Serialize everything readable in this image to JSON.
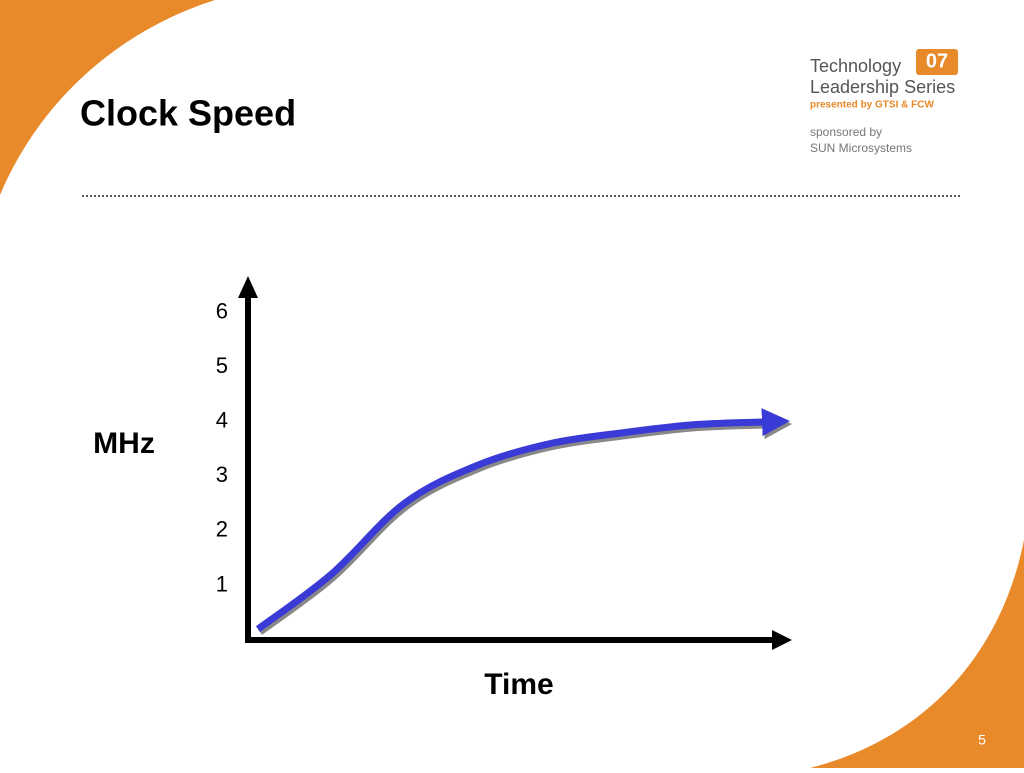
{
  "chart_data": {
    "type": "line",
    "title": "Clock Speed",
    "ylabel": "MHz",
    "xlabel": "Time",
    "categories": [
      null,
      null,
      null,
      null,
      null,
      null,
      null,
      null
    ],
    "values": [
      0.2,
      1.2,
      2.5,
      3.2,
      3.6,
      3.8,
      3.95,
      4.0
    ],
    "color": "#3a3ad6",
    "ylim": [
      0,
      6.6
    ],
    "yticks": [
      1,
      2,
      3,
      4,
      5,
      6
    ]
  },
  "branding": {
    "logo_line1": "Technology",
    "logo_badge": "07",
    "logo_line2": "Leadership Series",
    "presenter": "presented by GTSI & FCW",
    "sponsor_line1": "sponsored by",
    "sponsor_line2": "SUN Microsystems",
    "page_number": "5"
  }
}
